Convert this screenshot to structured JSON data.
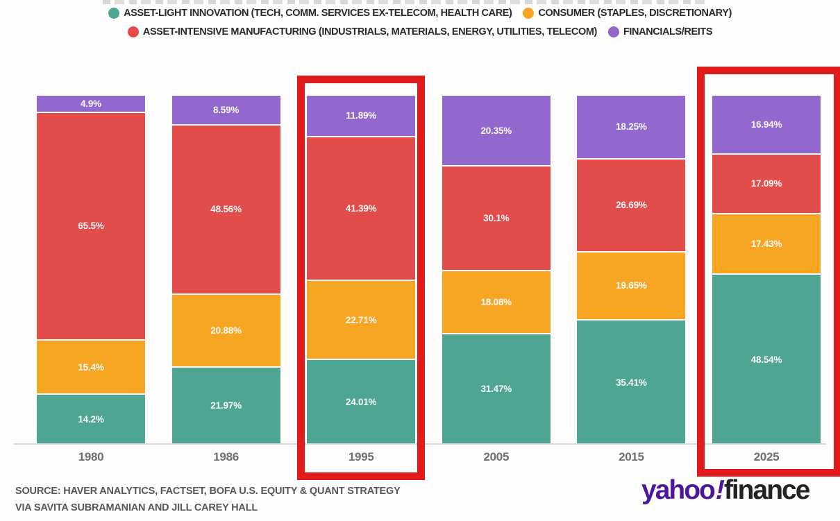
{
  "chart_data": {
    "type": "bar",
    "variant": "stacked-100-percent",
    "categories": [
      "1980",
      "1986",
      "1995",
      "2005",
      "2015",
      "2025"
    ],
    "series": [
      {
        "name": "ASSET-LIGHT INNOVATION (TECH, COMM. SERVICES EX-TELECOM, HEALTH CARE)",
        "color": "#4ea593",
        "values": [
          14.2,
          21.97,
          24.01,
          31.47,
          35.41,
          48.54
        ],
        "labels": [
          "14.2%",
          "21.97%",
          "24.01%",
          "31.47%",
          "35.41%",
          "48.54%"
        ]
      },
      {
        "name": "CONSUMER (STAPLES, DISCRETIONARY)",
        "color": "#f7a623",
        "values": [
          15.4,
          20.88,
          22.71,
          18.08,
          19.65,
          17.43
        ],
        "labels": [
          "15.4%",
          "20.88%",
          "22.71%",
          "18.08%",
          "19.65%",
          "17.43%"
        ]
      },
      {
        "name": "ASSET-INTENSIVE MANUFACTURING (INDUSTRIALS, MATERIALS, ENERGY, UTILITIES, TELECOM)",
        "color": "#e24c4b",
        "values": [
          65.5,
          48.56,
          41.39,
          30.1,
          26.69,
          17.09
        ],
        "labels": [
          "65.5%",
          "48.56%",
          "41.39%",
          "30.1%",
          "26.69%",
          "17.09%"
        ]
      },
      {
        "name": "FINANCIALS/REITS",
        "color": "#9267ce",
        "values": [
          4.9,
          8.59,
          11.89,
          20.35,
          18.25,
          16.94
        ],
        "labels": [
          "4.9%",
          "8.59%",
          "11.89%",
          "20.35%",
          "18.25%",
          "16.94%"
        ]
      }
    ],
    "ylim": [
      0,
      100
    ],
    "grid": false,
    "legend_position": "top",
    "highlighted_categories": [
      "1995",
      "2025"
    ],
    "highlight_color": "#e01b1b"
  },
  "source": {
    "line1": "SOURCE: HAVER ANALYTICS, FACTSET, BOFA U.S. EQUITY & QUANT STRATEGY",
    "line2": "VIA SAVITA SUBRAMANIAN AND JILL CAREY HALL"
  },
  "branding": {
    "yahoo": "yahoo",
    "bang": "!",
    "finance": "finance"
  }
}
